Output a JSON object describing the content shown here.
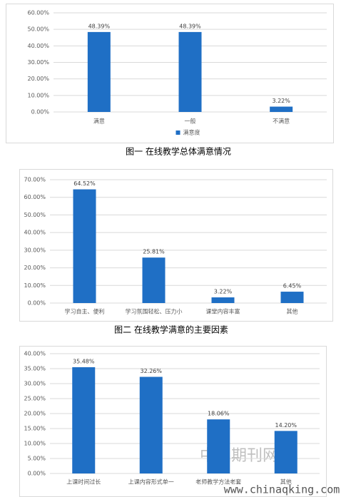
{
  "chart_data": [
    {
      "type": "bar",
      "caption": "图一 在线教学总体满意情况",
      "categories": [
        "满意",
        "一般",
        "不满意"
      ],
      "series": [
        {
          "name": "满意度",
          "color": "#1f6fc5",
          "values": [
            48.39,
            48.39,
            3.22
          ],
          "value_labels": [
            "48.39%",
            "48.39%",
            "3.22%"
          ]
        }
      ],
      "ylim": [
        0,
        60
      ],
      "yticks": [
        {
          "value": 0,
          "label": "0.00%"
        },
        {
          "value": 10,
          "label": "10.00%"
        },
        {
          "value": 20,
          "label": "20.00%"
        },
        {
          "value": 30,
          "label": "30.00%"
        },
        {
          "value": 40,
          "label": "40.00%"
        },
        {
          "value": 50,
          "label": "50.00%"
        },
        {
          "value": 60,
          "label": "60.00%"
        }
      ],
      "grid": true,
      "legend": "bottom"
    },
    {
      "type": "bar",
      "caption": "图二 在线教学满意的主要因素",
      "categories": [
        "学习自主、便利",
        "学习氛围轻松、压力小",
        "课堂内容丰富",
        "其他"
      ],
      "values": [
        64.52,
        25.81,
        3.22,
        6.45
      ],
      "value_labels": [
        "64.52%",
        "25.81%",
        "3.22%",
        "6.45%"
      ],
      "color": "#1f6fc5",
      "ylim": [
        0,
        70
      ],
      "yticks": [
        {
          "value": 0,
          "label": "0.00%"
        },
        {
          "value": 10,
          "label": "10.00%"
        },
        {
          "value": 20,
          "label": "20.00%"
        },
        {
          "value": 30,
          "label": "30.00%"
        },
        {
          "value": 40,
          "label": "40.00%"
        },
        {
          "value": 50,
          "label": "50.00%"
        },
        {
          "value": 60,
          "label": "60.00%"
        },
        {
          "value": 70,
          "label": "70.00%"
        }
      ],
      "grid": true
    },
    {
      "type": "bar",
      "categories": [
        "上课时间过长",
        "上课内容形式单一",
        "老师教学方法老套",
        "其他"
      ],
      "values": [
        35.48,
        32.26,
        18.06,
        14.2
      ],
      "value_labels": [
        "35.48%",
        "32.26%",
        "18.06%",
        "14.20%"
      ],
      "color": "#1f6fc5",
      "ylim": [
        0,
        40
      ],
      "yticks": [
        {
          "value": 0,
          "label": "0.00%"
        },
        {
          "value": 5,
          "label": "5.00%"
        },
        {
          "value": 10,
          "label": "10.00%"
        },
        {
          "value": 15,
          "label": "15.00%"
        },
        {
          "value": 20,
          "label": "20.00%"
        },
        {
          "value": 25,
          "label": "25.00%"
        },
        {
          "value": 30,
          "label": "30.00%"
        },
        {
          "value": 35,
          "label": "35.00%"
        },
        {
          "value": 40,
          "label": "40.00%"
        }
      ],
      "grid": true
    }
  ],
  "watermark": {
    "title": "中国期刊网",
    "url": "www.chinaqking.com"
  }
}
